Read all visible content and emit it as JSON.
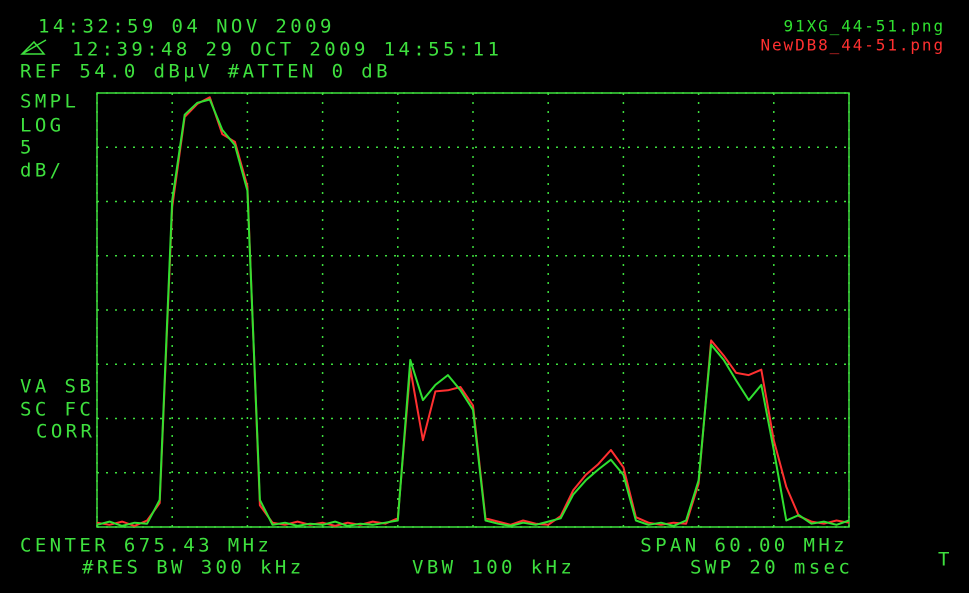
{
  "chart_data": {
    "type": "line",
    "timestamp": "14:32:59  04 NOV 2009",
    "reference_timestamp": "12:39:48  29 OCT 2009 14:55:11",
    "ref_line": "REF 54.0 dBµV #ATTEN 0 dB",
    "left_labels_top": [
      "SMPL",
      "LOG",
      "5",
      "dB/"
    ],
    "left_labels_bottom": [
      "VA SB",
      "SC FC",
      "CORR"
    ],
    "center": "CENTER 675.43 MHz",
    "span": "SPAN 60.00 MHz",
    "res_bw": "#RES BW 300 kHz",
    "vbw": "VBW 100 kHz",
    "sweep": "SWP 20 msec",
    "corner_mark": "T",
    "xlim": [
      645.43,
      705.43
    ],
    "ylim": [
      14,
      54
    ],
    "xticks": [
      645.43,
      651.43,
      657.43,
      663.43,
      669.43,
      675.43,
      681.43,
      687.43,
      693.43,
      699.43,
      705.43
    ],
    "yticks": [
      14,
      19,
      24,
      29,
      34,
      39,
      44,
      49,
      54
    ],
    "grid": true,
    "x": [
      645.43,
      646.43,
      647.43,
      648.43,
      649.43,
      650.43,
      651.43,
      652.43,
      653.43,
      654.43,
      655.43,
      656.43,
      657.43,
      658.43,
      659.43,
      660.43,
      661.43,
      662.43,
      663.43,
      664.43,
      665.43,
      666.43,
      667.43,
      668.43,
      669.43,
      670.43,
      671.43,
      672.43,
      673.43,
      674.43,
      675.43,
      676.43,
      677.43,
      678.43,
      679.43,
      680.43,
      681.43,
      682.43,
      683.43,
      684.43,
      685.43,
      686.43,
      687.43,
      688.43,
      689.43,
      690.43,
      691.43,
      692.43,
      693.43,
      694.43,
      695.43,
      696.43,
      697.43,
      698.43,
      699.43,
      700.43,
      701.43,
      702.43,
      703.43,
      704.43,
      705.43
    ],
    "series": [
      {
        "name": "NewDB8_44-51.png",
        "color": "#ff3030",
        "values": [
          14.4,
          14.2,
          14.5,
          14.1,
          14.6,
          16.2,
          43.5,
          51.8,
          53.0,
          53.6,
          50.2,
          49.5,
          45.4,
          16.0,
          14.4,
          14.2,
          14.5,
          14.2,
          14.4,
          14.1,
          14.4,
          14.2,
          14.5,
          14.3,
          14.8,
          28.6,
          22.0,
          26.5,
          26.6,
          26.9,
          25.2,
          14.8,
          14.5,
          14.2,
          14.6,
          14.3,
          14.2,
          15.0,
          17.4,
          18.8,
          19.8,
          21.1,
          19.5,
          14.9,
          14.4,
          14.2,
          14.4,
          14.3,
          18.0,
          31.2,
          29.8,
          28.2,
          28.0,
          28.5,
          22.0,
          17.7,
          15.0,
          14.5,
          14.3,
          14.6,
          14.4
        ]
      },
      {
        "name": "91XG_44-51.png",
        "color": "#30e030",
        "values": [
          14.2,
          14.5,
          14.1,
          14.4,
          14.3,
          16.5,
          44.1,
          52.0,
          53.1,
          53.4,
          50.6,
          49.2,
          45.0,
          16.5,
          14.2,
          14.4,
          14.1,
          14.3,
          14.2,
          14.5,
          14.1,
          14.3,
          14.2,
          14.4,
          14.6,
          29.4,
          25.7,
          27.1,
          28.0,
          26.6,
          24.8,
          14.6,
          14.3,
          14.1,
          14.4,
          14.2,
          14.5,
          14.8,
          17.0,
          18.3,
          19.3,
          20.2,
          18.8,
          14.6,
          14.2,
          14.4,
          14.1,
          14.6,
          18.3,
          30.8,
          29.4,
          27.5,
          25.7,
          27.1,
          21.1,
          14.6,
          15.1,
          14.3,
          14.5,
          14.2,
          14.6
        ]
      }
    ]
  }
}
